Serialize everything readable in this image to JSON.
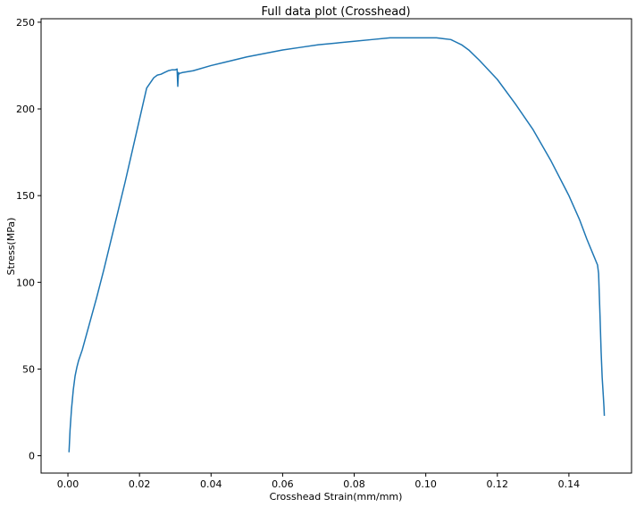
{
  "chart_data": {
    "type": "line",
    "title": "Full data plot (Crosshead)",
    "xlabel": "Crosshead Strain(mm/mm)",
    "ylabel": "Stress(MPa)",
    "xlim": [
      -0.0075,
      0.1575
    ],
    "ylim": [
      -10,
      252
    ],
    "xticks": [
      0.0,
      0.02,
      0.04,
      0.06,
      0.08,
      0.1,
      0.12,
      0.14
    ],
    "xtick_labels": [
      "0.00",
      "0.02",
      "0.04",
      "0.06",
      "0.08",
      "0.10",
      "0.12",
      "0.14"
    ],
    "yticks": [
      0,
      50,
      100,
      150,
      200,
      250
    ],
    "ytick_labels": [
      "0",
      "50",
      "100",
      "150",
      "200",
      "250"
    ],
    "grid": false,
    "line_color": "#1f77b4",
    "series": [
      {
        "x": [
          0.0003,
          0.0006,
          0.001,
          0.0015,
          0.002,
          0.0025,
          0.003,
          0.004,
          0.006,
          0.008,
          0.01,
          0.012,
          0.014,
          0.016,
          0.018,
          0.02,
          0.022,
          0.024,
          0.025,
          0.026,
          0.027,
          0.028,
          0.029,
          0.03,
          0.0305,
          0.0307,
          0.0309,
          0.031,
          0.0312,
          0.032,
          0.035,
          0.04,
          0.045,
          0.05,
          0.055,
          0.06,
          0.065,
          0.07,
          0.075,
          0.08,
          0.085,
          0.09,
          0.095,
          0.1,
          0.103,
          0.105,
          0.107,
          0.11,
          0.112,
          0.115,
          0.12,
          0.125,
          0.13,
          0.135,
          0.14,
          0.143,
          0.145,
          0.147,
          0.148,
          0.1483,
          0.1487,
          0.149,
          0.1493,
          0.1496,
          0.1498,
          0.1499
        ],
        "y": [
          2,
          15,
          27,
          38,
          46,
          51,
          55,
          61,
          76,
          91,
          107,
          124,
          141,
          158,
          176,
          194,
          212,
          218,
          219.5,
          220,
          221,
          222,
          222.5,
          222.5,
          223,
          213,
          221,
          220,
          220.5,
          221,
          222,
          225,
          227.5,
          230,
          232,
          234,
          235.5,
          237,
          238,
          239,
          240,
          241,
          241,
          241,
          241,
          240.5,
          240,
          237,
          234,
          228,
          217,
          203,
          188,
          170,
          150,
          136,
          125,
          115,
          110,
          105,
          80,
          60,
          45,
          35,
          28,
          23
        ]
      }
    ]
  }
}
